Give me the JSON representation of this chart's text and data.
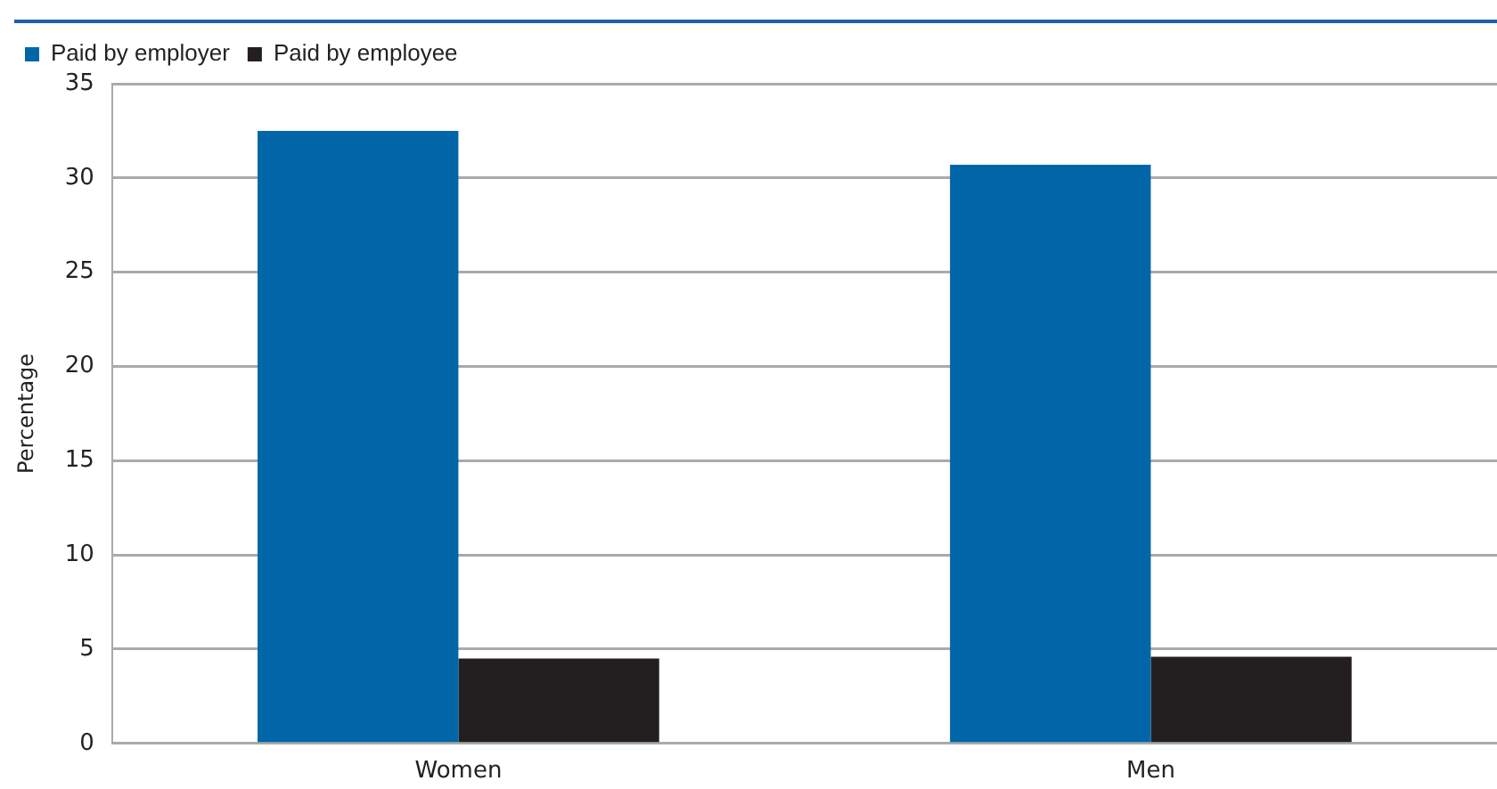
{
  "chart_data": {
    "type": "bar",
    "categories": [
      "Women",
      "Men"
    ],
    "series": [
      {
        "name": "Paid by employer",
        "color": "#0066a8",
        "values": [
          32.5,
          30.7
        ]
      },
      {
        "name": "Paid by employee",
        "color": "#231f20",
        "values": [
          4.5,
          4.6
        ]
      }
    ],
    "ylabel": "Percentage",
    "ylim": [
      0,
      35
    ],
    "yticks": [
      0,
      5,
      10,
      15,
      20,
      25,
      30,
      35
    ],
    "grid": "y",
    "legend": "top left"
  }
}
